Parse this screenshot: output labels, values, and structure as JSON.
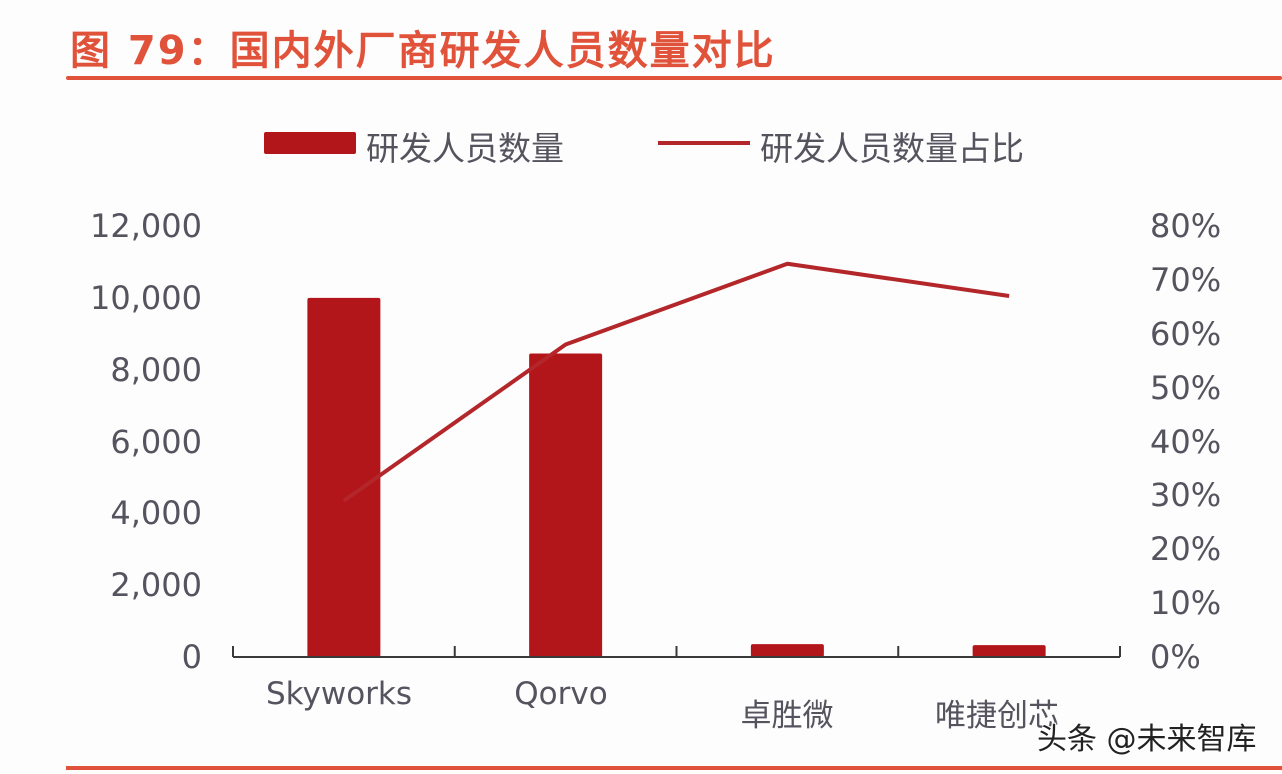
{
  "title": "图 79：国内外厂商研发人员数量对比",
  "legend": {
    "bar_label": "研发人员数量",
    "line_label": "研发人员数量占比"
  },
  "left_axis": {
    "ticks": [
      "12,000",
      "10,000",
      "8,000",
      "6,000",
      "4,000",
      "2,000",
      "0"
    ]
  },
  "right_axis": {
    "ticks": [
      "80%",
      "70%",
      "60%",
      "50%",
      "40%",
      "30%",
      "20%",
      "10%",
      "0%"
    ]
  },
  "x_axis": {
    "labels": [
      "Skyworks",
      "Qorvo",
      "卓胜微",
      "唯捷创芯"
    ]
  },
  "watermark": "头条 @未来智库",
  "colors": {
    "title": "#e0533a",
    "bar": "#b3161a",
    "line": "#b3262a",
    "axis_text": "#55535e"
  },
  "chart_data": {
    "type": "bar+line",
    "title": "图 79：国内外厂商研发人员数量对比",
    "categories": [
      "Skyworks",
      "Qorvo",
      "卓胜微",
      "唯捷创芯"
    ],
    "series": [
      {
        "name": "研发人员数量",
        "type": "bar",
        "axis": "left",
        "values": [
          10000,
          8450,
          360,
          330
        ]
      },
      {
        "name": "研发人员数量占比",
        "type": "line",
        "axis": "right",
        "values": [
          29,
          58,
          73,
          67
        ],
        "unit": "%"
      }
    ],
    "xlabel": "",
    "ylabel_left": "",
    "ylabel_right": "",
    "ylim_left": [
      0,
      12000
    ],
    "ylim_right": [
      0,
      80
    ],
    "grid": false,
    "legend_position": "top"
  }
}
